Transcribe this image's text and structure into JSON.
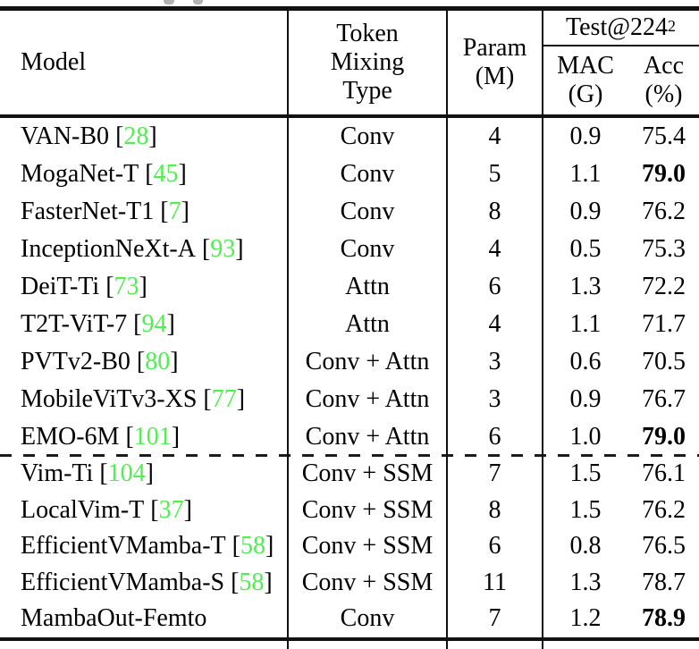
{
  "table": {
    "header": {
      "model": "Model",
      "token_lines": [
        "Token",
        "Mixing",
        "Type"
      ],
      "param_lines": [
        "Param",
        "(M)"
      ],
      "test_label": "Test@224",
      "test_sup": "2",
      "mac_lines": [
        "MAC",
        "(G)"
      ],
      "acc_lines": [
        "Acc",
        "(%)"
      ]
    },
    "cite_open": "[",
    "cite_close": "]",
    "rows": [
      {
        "model": "VAN-B0",
        "cite": "28",
        "token": "Conv",
        "param": "4",
        "mac": "0.9",
        "acc": "75.4",
        "acc_bold": false
      },
      {
        "model": "MogaNet-T",
        "cite": "45",
        "token": "Conv",
        "param": "5",
        "mac": "1.1",
        "acc": "79.0",
        "acc_bold": true
      },
      {
        "model": "FasterNet-T1",
        "cite": "7",
        "token": "Conv",
        "param": "8",
        "mac": "0.9",
        "acc": "76.2",
        "acc_bold": false
      },
      {
        "model": "InceptionNeXt-A",
        "cite": "93",
        "token": "Conv",
        "param": "4",
        "mac": "0.5",
        "acc": "75.3",
        "acc_bold": false
      },
      {
        "model": "DeiT-Ti",
        "cite": "73",
        "token": "Attn",
        "param": "6",
        "mac": "1.3",
        "acc": "72.2",
        "acc_bold": false
      },
      {
        "model": "T2T-ViT-7",
        "cite": "94",
        "token": "Attn",
        "param": "4",
        "mac": "1.1",
        "acc": "71.7",
        "acc_bold": false
      },
      {
        "model": "PVTv2-B0",
        "cite": "80",
        "token": "Conv + Attn",
        "param": "3",
        "mac": "0.6",
        "acc": "70.5",
        "acc_bold": false
      },
      {
        "model": "MobileViTv3-XS",
        "cite": "77",
        "token": "Conv + Attn",
        "param": "3",
        "mac": "0.9",
        "acc": "76.7",
        "acc_bold": false
      },
      {
        "model": "EMO-6M",
        "cite": "101",
        "token": "Conv + Attn",
        "param": "6",
        "mac": "1.0",
        "acc": "79.0",
        "acc_bold": true
      },
      {
        "model": "Vim-Ti",
        "cite": "104",
        "token": "Conv + SSM",
        "param": "7",
        "mac": "1.5",
        "acc": "76.1",
        "acc_bold": false
      },
      {
        "model": "LocalVim-T",
        "cite": "37",
        "token": "Conv + SSM",
        "param": "8",
        "mac": "1.5",
        "acc": "76.2",
        "acc_bold": false
      },
      {
        "model": "EfficientVMamba-T",
        "cite": "58",
        "token": "Conv + SSM",
        "param": "6",
        "mac": "0.8",
        "acc": "76.5",
        "acc_bold": false
      },
      {
        "model": "EfficientVMamba-S",
        "cite": "58",
        "token": "Conv + SSM",
        "param": "11",
        "mac": "1.3",
        "acc": "78.7",
        "acc_bold": false
      },
      {
        "model": "MambaOut-Femto",
        "cite": null,
        "token": "Conv",
        "param": "7",
        "mac": "1.2",
        "acc": "78.9",
        "acc_bold": true
      }
    ]
  },
  "colors": {
    "citation_green": "#50ee50",
    "rule_black": "#111111"
  }
}
